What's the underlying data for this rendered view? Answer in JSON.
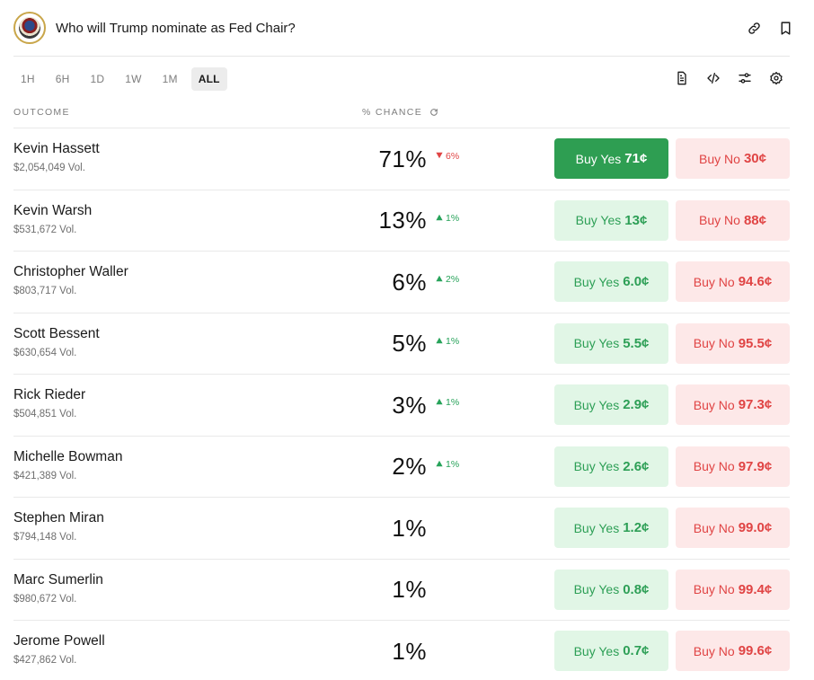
{
  "header": {
    "title": "Who will Trump nominate as Fed Chair?"
  },
  "timeframes": [
    {
      "label": "1H",
      "active": false
    },
    {
      "label": "6H",
      "active": false
    },
    {
      "label": "1D",
      "active": false
    },
    {
      "label": "1W",
      "active": false
    },
    {
      "label": "1M",
      "active": false
    },
    {
      "label": "ALL",
      "active": true
    }
  ],
  "columns": {
    "outcome": "OUTCOME",
    "chance": "% CHANCE"
  },
  "outcomes": [
    {
      "name": "Kevin Hassett",
      "volume": "$2,054,049 Vol.",
      "chance": "71%",
      "delta": "6%",
      "delta_dir": "down",
      "yes_label": "Buy Yes",
      "yes_price": "71¢",
      "no_label": "Buy No",
      "no_price": "30¢",
      "yes_highlighted": true
    },
    {
      "name": "Kevin Warsh",
      "volume": "$531,672 Vol.",
      "chance": "13%",
      "delta": "1%",
      "delta_dir": "up",
      "yes_label": "Buy Yes",
      "yes_price": "13¢",
      "no_label": "Buy No",
      "no_price": "88¢",
      "yes_highlighted": false
    },
    {
      "name": "Christopher Waller",
      "volume": "$803,717 Vol.",
      "chance": "6%",
      "delta": "2%",
      "delta_dir": "up",
      "yes_label": "Buy Yes",
      "yes_price": "6.0¢",
      "no_label": "Buy No",
      "no_price": "94.6¢",
      "yes_highlighted": false
    },
    {
      "name": "Scott Bessent",
      "volume": "$630,654 Vol.",
      "chance": "5%",
      "delta": "1%",
      "delta_dir": "up",
      "yes_label": "Buy Yes",
      "yes_price": "5.5¢",
      "no_label": "Buy No",
      "no_price": "95.5¢",
      "yes_highlighted": false
    },
    {
      "name": "Rick Rieder",
      "volume": "$504,851 Vol.",
      "chance": "3%",
      "delta": "1%",
      "delta_dir": "up",
      "yes_label": "Buy Yes",
      "yes_price": "2.9¢",
      "no_label": "Buy No",
      "no_price": "97.3¢",
      "yes_highlighted": false
    },
    {
      "name": "Michelle Bowman",
      "volume": "$421,389 Vol.",
      "chance": "2%",
      "delta": "1%",
      "delta_dir": "up",
      "yes_label": "Buy Yes",
      "yes_price": "2.6¢",
      "no_label": "Buy No",
      "no_price": "97.9¢",
      "yes_highlighted": false
    },
    {
      "name": "Stephen Miran",
      "volume": "$794,148 Vol.",
      "chance": "1%",
      "delta": "",
      "delta_dir": "none",
      "yes_label": "Buy Yes",
      "yes_price": "1.2¢",
      "no_label": "Buy No",
      "no_price": "99.0¢",
      "yes_highlighted": false
    },
    {
      "name": "Marc Sumerlin",
      "volume": "$980,672 Vol.",
      "chance": "1%",
      "delta": "",
      "delta_dir": "none",
      "yes_label": "Buy Yes",
      "yes_price": "0.8¢",
      "no_label": "Buy No",
      "no_price": "99.4¢",
      "yes_highlighted": false
    },
    {
      "name": "Jerome Powell",
      "volume": "$427,862 Vol.",
      "chance": "1%",
      "delta": "",
      "delta_dir": "none",
      "yes_label": "Buy Yes",
      "yes_price": "0.7¢",
      "no_label": "Buy No",
      "no_price": "99.6¢",
      "yes_highlighted": false
    }
  ],
  "colors": {
    "yes_solid": "#2e9e52",
    "yes_soft": "#e1f6e6",
    "no_soft": "#fde8e8",
    "up": "#27a35a",
    "down": "#e04444"
  },
  "icons": {
    "logo": "fed-seal-icon",
    "header_actions": [
      "link-icon",
      "bookmark-icon"
    ],
    "toolbar": [
      "document-icon",
      "code-icon",
      "sliders-icon",
      "gear-icon"
    ],
    "chance_refresh": "refresh-icon"
  }
}
